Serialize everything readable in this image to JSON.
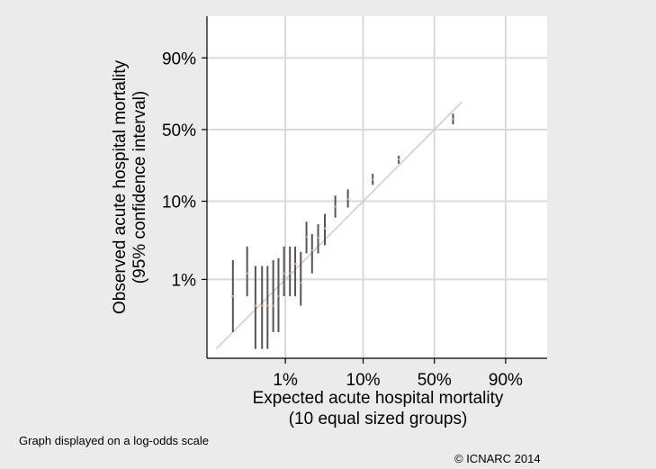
{
  "chart_data": {
    "type": "scatter",
    "scale": "log-odds",
    "xlabel": [
      "Expected acute hospital mortality",
      "(10 equal sized groups)"
    ],
    "ylabel": [
      "Observed acute hospital mortality",
      "(95% confidence interval)"
    ],
    "xticks": [
      {
        "value": 1,
        "label": "1%"
      },
      {
        "value": 10,
        "label": "10%"
      },
      {
        "value": 50,
        "label": "50%"
      },
      {
        "value": 90,
        "label": "90%"
      }
    ],
    "yticks": [
      {
        "value": 1,
        "label": "1%"
      },
      {
        "value": 10,
        "label": "10%"
      },
      {
        "value": 50,
        "label": "50%"
      },
      {
        "value": 90,
        "label": "90%"
      }
    ],
    "xlim": [
      0.09,
      97
    ],
    "ylim": [
      0.09,
      97
    ],
    "grid": true,
    "reference_line": {
      "from": 0.12,
      "to": 70
    },
    "series": [
      {
        "points": [
          {
            "x": 0.2,
            "y": 0.6,
            "low": 0.2,
            "high": 1.8
          },
          {
            "x": 0.31,
            "y": 1.2,
            "low": 0.6,
            "high": 2.7
          },
          {
            "x": 0.4,
            "y": 0.45,
            "low": 0.12,
            "high": 1.5
          },
          {
            "x": 0.49,
            "y": 0.45,
            "low": 0.12,
            "high": 1.5
          },
          {
            "x": 0.58,
            "y": 0.45,
            "low": 0.12,
            "high": 1.5
          },
          {
            "x": 0.69,
            "y": 0.45,
            "low": 0.2,
            "high": 1.8
          },
          {
            "x": 0.81,
            "y": 0.6,
            "low": 0.2,
            "high": 1.9
          },
          {
            "x": 0.96,
            "y": 1.2,
            "low": 0.6,
            "high": 2.7
          },
          {
            "x": 1.15,
            "y": 1.2,
            "low": 0.6,
            "high": 2.7
          },
          {
            "x": 1.35,
            "y": 1.6,
            "low": 0.6,
            "high": 2.7
          },
          {
            "x": 1.6,
            "y": 0.9,
            "low": 0.45,
            "high": 2.3
          },
          {
            "x": 1.9,
            "y": 3.6,
            "low": 2.2,
            "high": 5.6
          },
          {
            "x": 2.25,
            "y": 2.4,
            "low": 1.2,
            "high": 3.9
          },
          {
            "x": 2.7,
            "y": 3.5,
            "low": 2.2,
            "high": 5.2
          },
          {
            "x": 3.3,
            "y": 4.6,
            "low": 2.8,
            "high": 7.0
          },
          {
            "x": 4.5,
            "y": 8.6,
            "low": 6.3,
            "high": 11.7
          },
          {
            "x": 6.5,
            "y": 10.6,
            "low": 8.4,
            "high": 13.8
          },
          {
            "x": 13,
            "y": 17.8,
            "low": 15.5,
            "high": 20.5
          },
          {
            "x": 25,
            "y": 28.5,
            "low": 26.0,
            "high": 31.0
          },
          {
            "x": 64,
            "y": 58,
            "low": 54,
            "high": 62
          }
        ]
      }
    ]
  },
  "footnote": "Graph displayed on a log-odds scale",
  "copyright": "© ICNARC 2014"
}
